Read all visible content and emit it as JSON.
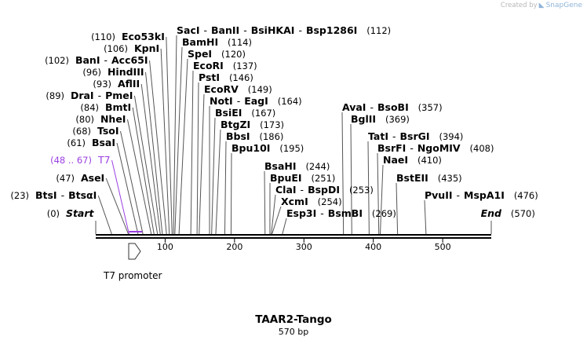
{
  "plasmid": {
    "name": "TAAR2-Tango",
    "size_label": "570 bp"
  },
  "branding": {
    "created_by": "Created by",
    "product": "SnapGene"
  },
  "colors": {
    "primer": "#9b40e0",
    "line": "#555555",
    "backbone": "#000000"
  },
  "scale": {
    "length": 570,
    "ticks": [
      100,
      200,
      300,
      400,
      500
    ]
  },
  "feature": {
    "name": "T7 promoter",
    "start": 48,
    "end": 67,
    "direction": "forward"
  },
  "sites": [
    {
      "id": "sacI",
      "enzymes": [
        "SacI",
        "BanII",
        "BsiHKAI",
        "Bsp1286I"
      ],
      "pos": 112,
      "pos_label": "(112)",
      "num_side": "right"
    },
    {
      "id": "eco53",
      "enzymes": [
        "Eco53kI"
      ],
      "pos": 110,
      "pos_label": "(110)",
      "num_side": "left"
    },
    {
      "id": "bamhi",
      "enzymes": [
        "BamHI"
      ],
      "pos": 114,
      "pos_label": "(114)",
      "num_side": "right"
    },
    {
      "id": "kpni",
      "enzymes": [
        "KpnI"
      ],
      "pos": 106,
      "pos_label": "(106)",
      "num_side": "left"
    },
    {
      "id": "spei",
      "enzymes": [
        "SpeI"
      ],
      "pos": 120,
      "pos_label": "(120)",
      "num_side": "right"
    },
    {
      "id": "bani",
      "enzymes": [
        "BanI",
        "Acc65I"
      ],
      "pos": 102,
      "pos_label": "(102)",
      "num_side": "left"
    },
    {
      "id": "ecori",
      "enzymes": [
        "EcoRI"
      ],
      "pos": 137,
      "pos_label": "(137)",
      "num_side": "right"
    },
    {
      "id": "hind",
      "enzymes": [
        "HindIII"
      ],
      "pos": 96,
      "pos_label": "(96)",
      "num_side": "left"
    },
    {
      "id": "psti",
      "enzymes": [
        "PstI"
      ],
      "pos": 146,
      "pos_label": "(146)",
      "num_side": "right"
    },
    {
      "id": "afli",
      "enzymes": [
        "AflII"
      ],
      "pos": 93,
      "pos_label": "(93)",
      "num_side": "left"
    },
    {
      "id": "ecorv",
      "enzymes": [
        "EcoRV"
      ],
      "pos": 149,
      "pos_label": "(149)",
      "num_side": "right"
    },
    {
      "id": "drai",
      "enzymes": [
        "DraI",
        "PmeI"
      ],
      "pos": 89,
      "pos_label": "(89)",
      "num_side": "left"
    },
    {
      "id": "noti",
      "enzymes": [
        "NotI",
        "EagI"
      ],
      "pos": 164,
      "pos_label": "(164)",
      "num_side": "right"
    },
    {
      "id": "bmti",
      "enzymes": [
        "BmtI"
      ],
      "pos": 84,
      "pos_label": "(84)",
      "num_side": "left"
    },
    {
      "id": "bsiei",
      "enzymes": [
        "BsiEI"
      ],
      "pos": 167,
      "pos_label": "(167)",
      "num_side": "right"
    },
    {
      "id": "nhei",
      "enzymes": [
        "NheI"
      ],
      "pos": 80,
      "pos_label": "(80)",
      "num_side": "left"
    },
    {
      "id": "btgzi",
      "enzymes": [
        "BtgZI"
      ],
      "pos": 173,
      "pos_label": "(173)",
      "num_side": "right"
    },
    {
      "id": "tsoi",
      "enzymes": [
        "TsoI"
      ],
      "pos": 68,
      "pos_label": "(68)",
      "num_side": "left"
    },
    {
      "id": "bbsi",
      "enzymes": [
        "BbsI"
      ],
      "pos": 186,
      "pos_label": "(186)",
      "num_side": "right"
    },
    {
      "id": "bsai",
      "enzymes": [
        "BsaI"
      ],
      "pos": 61,
      "pos_label": "(61)",
      "num_side": "left"
    },
    {
      "id": "bpu10",
      "enzymes": [
        "Bpu10I"
      ],
      "pos": 195,
      "pos_label": "(195)",
      "num_side": "right"
    },
    {
      "id": "t7",
      "enzymes": [
        "T7"
      ],
      "pos": 48,
      "pos_label": "(48 .. 67)",
      "num_side": "left",
      "primer": true
    },
    {
      "id": "asei",
      "enzymes": [
        "AseI"
      ],
      "pos": 47,
      "pos_label": "(47)",
      "num_side": "left"
    },
    {
      "id": "btsi",
      "enzymes": [
        "BtsI",
        "BtsαI"
      ],
      "pos": 23,
      "pos_label": "(23)",
      "num_side": "left"
    },
    {
      "id": "start",
      "enzymes": [
        "Start"
      ],
      "pos": 0,
      "pos_label": "(0)",
      "num_side": "left",
      "endpoint": true
    },
    {
      "id": "bsahi",
      "enzymes": [
        "BsaHI"
      ],
      "pos": 244,
      "pos_label": "(244)",
      "num_side": "right"
    },
    {
      "id": "bpuei",
      "enzymes": [
        "BpuEI"
      ],
      "pos": 251,
      "pos_label": "(251)",
      "num_side": "right"
    },
    {
      "id": "clai",
      "enzymes": [
        "ClaI",
        "BspDI"
      ],
      "pos": 253,
      "pos_label": "(253)",
      "num_side": "right"
    },
    {
      "id": "xcmi",
      "enzymes": [
        "XcmI"
      ],
      "pos": 254,
      "pos_label": "(254)",
      "num_side": "right"
    },
    {
      "id": "esp3i",
      "enzymes": [
        "Esp3I",
        "BsmBI"
      ],
      "pos": 269,
      "pos_label": "(269)",
      "num_side": "right"
    },
    {
      "id": "avai",
      "enzymes": [
        "AvaI",
        "BsoBI"
      ],
      "pos": 357,
      "pos_label": "(357)",
      "num_side": "right"
    },
    {
      "id": "bglii",
      "enzymes": [
        "BglII"
      ],
      "pos": 369,
      "pos_label": "(369)",
      "num_side": "right"
    },
    {
      "id": "tati",
      "enzymes": [
        "TatI",
        "BsrGI"
      ],
      "pos": 394,
      "pos_label": "(394)",
      "num_side": "right"
    },
    {
      "id": "bsrfi",
      "enzymes": [
        "BsrFI",
        "NgoMIV"
      ],
      "pos": 408,
      "pos_label": "(408)",
      "num_side": "right"
    },
    {
      "id": "naei",
      "enzymes": [
        "NaeI"
      ],
      "pos": 410,
      "pos_label": "(410)",
      "num_side": "right"
    },
    {
      "id": "bsteii",
      "enzymes": [
        "BstEII"
      ],
      "pos": 435,
      "pos_label": "(435)",
      "num_side": "right"
    },
    {
      "id": "pvuii",
      "enzymes": [
        "PvuII",
        "MspA1I"
      ],
      "pos": 476,
      "pos_label": "(476)",
      "num_side": "right"
    },
    {
      "id": "end",
      "enzymes": [
        "End"
      ],
      "pos": 570,
      "pos_label": "(570)",
      "num_side": "right",
      "endpoint": true
    }
  ]
}
